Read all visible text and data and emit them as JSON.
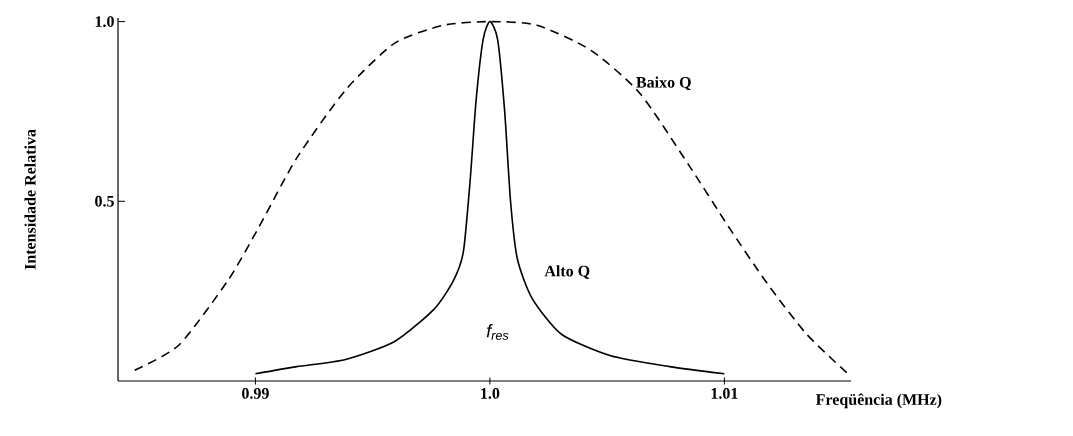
{
  "chart_data": {
    "type": "line",
    "xlabel": "Freqüência (MHz)",
    "ylabel": "Intensidade Relativa",
    "xlim": [
      0.98414,
      1.0154
    ],
    "ylim": [
      0,
      1.01
    ],
    "xticks": [
      0.99,
      {
        "value": 1.0,
        "label": "1.0"
      },
      1.01
    ],
    "yticks": [
      0.5,
      {
        "value": 1.0,
        "label": "1.0"
      }
    ],
    "series": [
      {
        "color": "#000000",
        "line_style": "dashed",
        "x": [
          0.98485,
          0.98674,
          0.98883,
          0.99008,
          0.99176,
          0.99385,
          0.99594,
          0.99803,
          1.0,
          1.00201,
          1.00431,
          1.0064,
          1.00849,
          1.01017,
          1.01184,
          1.01351,
          1.01527
        ],
        "values": [
          0.03,
          0.1,
          0.28,
          0.42,
          0.62,
          0.81,
          0.94,
          0.99,
          1.0,
          0.99,
          0.92,
          0.8,
          0.6,
          0.43,
          0.27,
          0.13,
          0.02
        ]
      },
      {
        "color": "#000000",
        "line_style": "solid",
        "x": [
          0.99,
          0.99176,
          0.99385,
          0.99594,
          0.99762,
          0.99845,
          0.99887,
          0.99916,
          0.99941,
          0.99971,
          1.0,
          1.00033,
          1.00063,
          1.00088,
          1.00117,
          1.0018,
          1.00305,
          1.00515,
          1.00766,
          1.01
        ],
        "values": [
          0.02,
          0.04,
          0.06,
          0.11,
          0.2,
          0.28,
          0.36,
          0.56,
          0.78,
          0.95,
          1.0,
          0.95,
          0.75,
          0.5,
          0.34,
          0.23,
          0.13,
          0.07,
          0.04,
          0.02
        ]
      }
    ],
    "annotations": [
      "Baixo Q",
      "Alto Q",
      "f$_{res}$"
    ]
  }
}
